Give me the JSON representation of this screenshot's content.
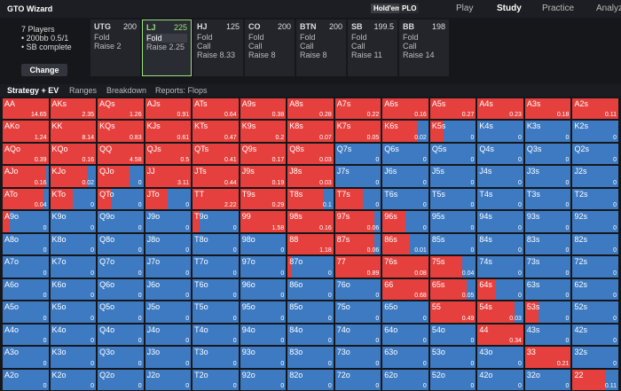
{
  "header": {
    "logo": "GTO Wizard",
    "games": [
      "Hold'em",
      "PLO"
    ],
    "nav": [
      "Play",
      "Study",
      "Practice",
      "Analyze"
    ]
  },
  "setup": {
    "lines": [
      "7 Players",
      "• 200bb 0.5/1",
      "• SB complete"
    ],
    "button": "Change"
  },
  "positions": [
    {
      "name": "UTG",
      "stack": "200",
      "actions": [
        "Fold",
        "Raise 2"
      ],
      "selected": false
    },
    {
      "name": "LJ",
      "stack": "225",
      "actions": [
        "Fold",
        "Raise 2.25"
      ],
      "selected": true
    },
    {
      "name": "HJ",
      "stack": "125",
      "actions": [
        "Fold",
        "Call",
        "Raise 8.33"
      ],
      "selected": false
    },
    {
      "name": "CO",
      "stack": "200",
      "actions": [
        "Fold",
        "Call",
        "Raise 8"
      ],
      "selected": false
    },
    {
      "name": "BTN",
      "stack": "200",
      "actions": [
        "Fold",
        "Call",
        "Raise 8"
      ],
      "selected": false
    },
    {
      "name": "SB",
      "stack": "199.5",
      "actions": [
        "Fold",
        "Call",
        "Raise 11"
      ],
      "selected": false
    },
    {
      "name": "BB",
      "stack": "198",
      "actions": [
        "Fold",
        "Call",
        "Raise 14"
      ],
      "selected": false
    }
  ],
  "tabs": [
    "Strategy + EV",
    "Ranges",
    "Breakdown",
    "Reports: Flops"
  ],
  "grid": {
    "raise_color": "#e5403d",
    "fold_color": "#3d7ac2",
    "rows": [
      {
        "hands": [
          "AA",
          "AKs",
          "AQs",
          "AJs",
          "ATs",
          "A9s",
          "A8s",
          "A7s",
          "A6s",
          "A5s",
          "A4s",
          "A3s",
          "A2s"
        ],
        "ev": [
          "14.65",
          "2.35",
          "1.26",
          "0.91",
          "0.64",
          "0.38",
          "0.28",
          "0.22",
          "0.16",
          "0.27",
          "0.23",
          "0.18",
          "0.11"
        ],
        "raise": [
          1,
          1,
          1,
          1,
          1,
          1,
          1,
          1,
          1,
          1,
          1,
          1,
          1
        ]
      },
      {
        "hands": [
          "AKo",
          "KK",
          "KQs",
          "KJs",
          "KTs",
          "K9s",
          "K8s",
          "K7s",
          "K6s",
          "K5s",
          "K4s",
          "K3s",
          "K2s"
        ],
        "ev": [
          "1.24",
          "8.14",
          "0.83",
          "0.61",
          "0.47",
          "0.2",
          "0.07",
          "0.05",
          "0.02",
          "0",
          "0",
          "0",
          "0"
        ],
        "raise": [
          1,
          1,
          1,
          1,
          1,
          1,
          1,
          1,
          0.75,
          0.3,
          0,
          0,
          0
        ]
      },
      {
        "hands": [
          "AQo",
          "KQo",
          "QQ",
          "QJs",
          "QTs",
          "Q9s",
          "Q8s",
          "Q7s",
          "Q6s",
          "Q5s",
          "Q4s",
          "Q3s",
          "Q2s"
        ],
        "ev": [
          "0.39",
          "0.16",
          "4.58",
          "0.5",
          "0.41",
          "0.17",
          "0.03",
          "0",
          "0",
          "0",
          "0",
          "0",
          "0"
        ],
        "raise": [
          1,
          1,
          1,
          1,
          1,
          1,
          1,
          0,
          0,
          0,
          0,
          0,
          0
        ]
      },
      {
        "hands": [
          "AJo",
          "KJo",
          "QJo",
          "JJ",
          "JTs",
          "J9s",
          "J8s",
          "J7s",
          "J6s",
          "J5s",
          "J4s",
          "J3s",
          "J2s"
        ],
        "ev": [
          "0.16",
          "0.02",
          "0",
          "3.11",
          "0.44",
          "0.19",
          "0.03",
          "0",
          "0",
          "0",
          "0",
          "0",
          "0"
        ],
        "raise": [
          0.95,
          0.8,
          0.7,
          1,
          1,
          1,
          1,
          0,
          0,
          0,
          0,
          0,
          0
        ]
      },
      {
        "hands": [
          "ATo",
          "KTo",
          "QTo",
          "JTo",
          "TT",
          "T9s",
          "T8s",
          "T7s",
          "T6s",
          "T5s",
          "T4s",
          "T3s",
          "T2s"
        ],
        "ev": [
          "0.04",
          "0",
          "0",
          "0",
          "2.22",
          "0.29",
          "0.1",
          "0",
          "0",
          "0",
          "0",
          "0",
          "0"
        ],
        "raise": [
          0.9,
          0.5,
          0.3,
          0.5,
          1,
          1,
          0.8,
          0.6,
          0,
          0,
          0,
          0,
          0
        ]
      },
      {
        "hands": [
          "A9o",
          "K9o",
          "Q9o",
          "J9o",
          "T9o",
          "99",
          "98s",
          "97s",
          "96s",
          "95s",
          "94s",
          "93s",
          "92s"
        ],
        "ev": [
          "0",
          "0",
          "0",
          "0",
          "0",
          "1.58",
          "0.16",
          "0.06",
          "0",
          "0",
          "0",
          "0",
          "0"
        ],
        "raise": [
          0.15,
          0,
          0,
          0,
          0.15,
          1,
          1,
          0.85,
          0.5,
          0,
          0,
          0,
          0
        ]
      },
      {
        "hands": [
          "A8o",
          "K8o",
          "Q8o",
          "J8o",
          "T8o",
          "98o",
          "88",
          "87s",
          "86s",
          "85s",
          "84s",
          "83s",
          "82s"
        ],
        "ev": [
          "0",
          "0",
          "0",
          "0",
          "0",
          "0",
          "1.18",
          "0.06",
          "0.01",
          "0",
          "0",
          "0",
          "0"
        ],
        "raise": [
          0,
          0,
          0,
          0,
          0,
          0,
          1,
          0.85,
          0.6,
          0,
          0,
          0,
          0
        ]
      },
      {
        "hands": [
          "A7o",
          "K7o",
          "Q7o",
          "J7o",
          "T7o",
          "97o",
          "87o",
          "77",
          "76s",
          "75s",
          "74s",
          "73s",
          "72s"
        ],
        "ev": [
          "0",
          "0",
          "0",
          "0",
          "0",
          "0",
          "0",
          "0.89",
          "0.08",
          "0.04",
          "0",
          "0",
          "0"
        ],
        "raise": [
          0,
          0,
          0,
          0,
          0,
          0,
          0.1,
          1,
          1,
          0.7,
          0,
          0,
          0
        ]
      },
      {
        "hands": [
          "A6o",
          "K6o",
          "Q6o",
          "J6o",
          "T6o",
          "96o",
          "86o",
          "76o",
          "66",
          "65s",
          "64s",
          "63s",
          "62s"
        ],
        "ev": [
          "0",
          "0",
          "0",
          "0",
          "0",
          "0",
          "0",
          "0",
          "0.68",
          "0.05",
          "0",
          "0",
          "0"
        ],
        "raise": [
          0,
          0,
          0,
          0,
          0,
          0,
          0,
          0,
          1,
          0.8,
          0.4,
          0,
          0
        ]
      },
      {
        "hands": [
          "A5o",
          "K5o",
          "Q5o",
          "J5o",
          "T5o",
          "95o",
          "85o",
          "75o",
          "65o",
          "55",
          "54s",
          "53s",
          "52s"
        ],
        "ev": [
          "0",
          "0",
          "0",
          "0",
          "0",
          "0",
          "0",
          "0",
          "0",
          "0.49",
          "0.03",
          "0",
          "0"
        ],
        "raise": [
          0,
          0,
          0,
          0,
          0,
          0,
          0,
          0,
          0,
          1,
          0.8,
          0.3,
          0
        ]
      },
      {
        "hands": [
          "A4o",
          "K4o",
          "Q4o",
          "J4o",
          "T4o",
          "94o",
          "84o",
          "74o",
          "64o",
          "54o",
          "44",
          "43s",
          "42s"
        ],
        "ev": [
          "0",
          "0",
          "0",
          "0",
          "0",
          "0",
          "0",
          "0",
          "0",
          "0",
          "0.34",
          "0",
          "0"
        ],
        "raise": [
          0,
          0,
          0,
          0,
          0,
          0,
          0,
          0,
          0,
          0,
          1,
          0,
          0
        ]
      },
      {
        "hands": [
          "A3o",
          "K3o",
          "Q3o",
          "J3o",
          "T3o",
          "93o",
          "83o",
          "73o",
          "63o",
          "53o",
          "43o",
          "33",
          "32s"
        ],
        "ev": [
          "0",
          "0",
          "0",
          "0",
          "0",
          "0",
          "0",
          "0",
          "0",
          "0",
          "0",
          "0.21",
          "0"
        ],
        "raise": [
          0,
          0,
          0,
          0,
          0,
          0,
          0,
          0,
          0,
          0,
          0,
          1,
          0
        ]
      },
      {
        "hands": [
          "A2o",
          "K2o",
          "Q2o",
          "J2o",
          "T2o",
          "92o",
          "82o",
          "72o",
          "62o",
          "52o",
          "42o",
          "32o",
          "22"
        ],
        "ev": [
          "0",
          "0",
          "0",
          "0",
          "0",
          "0",
          "0",
          "0",
          "0",
          "0",
          "0",
          "0",
          "0.11"
        ],
        "raise": [
          0,
          0,
          0,
          0,
          0,
          0,
          0,
          0,
          0,
          0,
          0,
          0,
          0.7
        ]
      }
    ]
  }
}
